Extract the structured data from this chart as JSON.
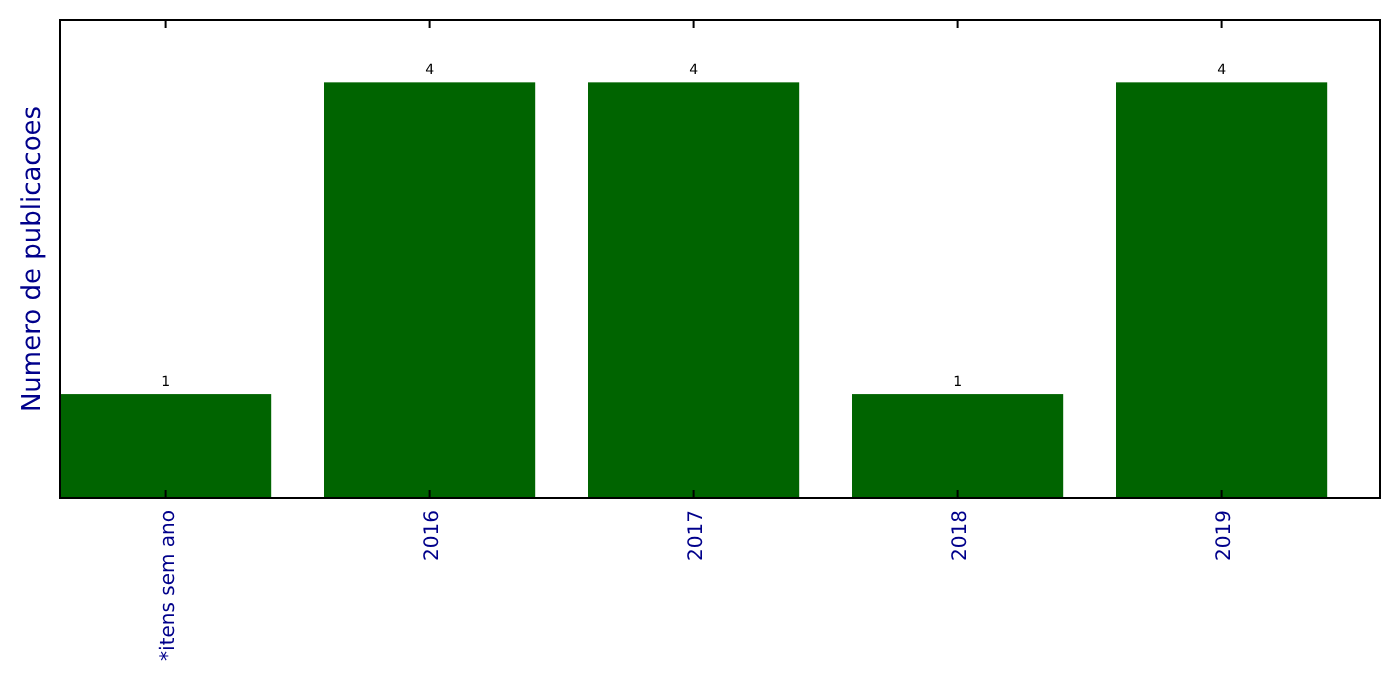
{
  "chart_data": {
    "type": "bar",
    "ylabel": "Numero de publicacoes",
    "categories": [
      "*itens sem ano",
      "2016",
      "2017",
      "2018",
      "2019"
    ],
    "values": [
      1,
      4,
      4,
      1,
      4
    ],
    "color": "#006400",
    "ylim": [
      0,
      4.6
    ],
    "data_labels": true,
    "tick_labels": "x"
  }
}
